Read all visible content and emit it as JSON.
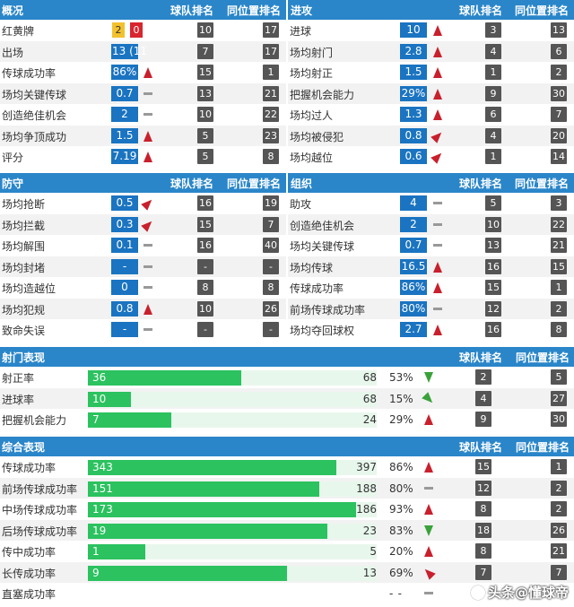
{
  "overview": {
    "title": "概况",
    "team_rank": "球队排名",
    "pos_rank": "同位置排名",
    "cards": {
      "label": "红黄牌",
      "yellow": "2",
      "red": "0",
      "team": "10",
      "pos": "17"
    },
    "rows": [
      {
        "label": "出场",
        "value": "13 (11",
        "trend": "",
        "team": "7",
        "pos": "17"
      },
      {
        "label": "传球成功率",
        "value": "86%",
        "trend": "up",
        "team": "15",
        "pos": "1"
      },
      {
        "label": "场均关键传球",
        "value": "0.7",
        "trend": "flat",
        "team": "13",
        "pos": "21"
      },
      {
        "label": "创造绝佳机会",
        "value": "2",
        "trend": "flat",
        "team": "10",
        "pos": "22"
      },
      {
        "label": "场均争顶成功",
        "value": "1.5",
        "trend": "up",
        "team": "5",
        "pos": "23"
      },
      {
        "label": "评分",
        "value": "7.19",
        "trend": "up",
        "team": "5",
        "pos": "8"
      }
    ]
  },
  "attack": {
    "title": "进攻",
    "team_rank": "球队排名",
    "pos_rank": "同位置排名",
    "rows": [
      {
        "label": "进球",
        "value": "10",
        "trend": "up",
        "team": "3",
        "pos": "13"
      },
      {
        "label": "场均射门",
        "value": "2.8",
        "trend": "up",
        "team": "4",
        "pos": "6"
      },
      {
        "label": "场均射正",
        "value": "1.5",
        "trend": "up",
        "team": "1",
        "pos": "2"
      },
      {
        "label": "把握机会能力",
        "value": "29%",
        "trend": "up",
        "team": "9",
        "pos": "30"
      },
      {
        "label": "场均过人",
        "value": "1.3",
        "trend": "up",
        "team": "6",
        "pos": "7"
      },
      {
        "label": "场均被侵犯",
        "value": "0.8",
        "trend": "up-right",
        "team": "4",
        "pos": "20"
      },
      {
        "label": "场均越位",
        "value": "0.6",
        "trend": "up-right",
        "team": "1",
        "pos": "14"
      }
    ]
  },
  "defense": {
    "title": "防守",
    "team_rank": "球队排名",
    "pos_rank": "同位置排名",
    "rows": [
      {
        "label": "场均抢断",
        "value": "0.5",
        "trend": "up-right",
        "team": "16",
        "pos": "19"
      },
      {
        "label": "场均拦截",
        "value": "0.3",
        "trend": "up-right",
        "team": "15",
        "pos": "7"
      },
      {
        "label": "场均解围",
        "value": "0.1",
        "trend": "flat",
        "team": "16",
        "pos": "40"
      },
      {
        "label": "场均封堵",
        "value": "-",
        "trend": "flat",
        "team": "-",
        "pos": "-"
      },
      {
        "label": "场均造越位",
        "value": "0",
        "trend": "flat",
        "team": "8",
        "pos": "8"
      },
      {
        "label": "场均犯规",
        "value": "0.8",
        "trend": "up",
        "team": "10",
        "pos": "26"
      },
      {
        "label": "致命失误",
        "value": "-",
        "trend": "flat",
        "team": "-",
        "pos": "-"
      }
    ]
  },
  "organize": {
    "title": "组织",
    "team_rank": "球队排名",
    "pos_rank": "同位置排名",
    "rows": [
      {
        "label": "助攻",
        "value": "4",
        "trend": "flat",
        "team": "5",
        "pos": "3"
      },
      {
        "label": "创造绝佳机会",
        "value": "2",
        "trend": "flat",
        "team": "10",
        "pos": "22"
      },
      {
        "label": "场均关键传球",
        "value": "0.7",
        "trend": "flat",
        "team": "13",
        "pos": "21"
      },
      {
        "label": "场均传球",
        "value": "16.5",
        "trend": "up",
        "team": "16",
        "pos": "15"
      },
      {
        "label": "传球成功率",
        "value": "86%",
        "trend": "up",
        "team": "15",
        "pos": "1"
      },
      {
        "label": "前场传球成功率",
        "value": "80%",
        "trend": "flat",
        "team": "12",
        "pos": "2"
      },
      {
        "label": "场均夺回球权",
        "value": "2.7",
        "trend": "up",
        "team": "16",
        "pos": "8"
      }
    ]
  },
  "shooting": {
    "title": "射门表现",
    "team_rank": "球队排名",
    "pos_rank": "同位置排名",
    "rows": [
      {
        "label": "射正率",
        "made": "36",
        "total": "68",
        "pct": "53%",
        "fill": 0.53,
        "trend": "down",
        "team": "2",
        "pos": "5"
      },
      {
        "label": "进球率",
        "made": "10",
        "total": "68",
        "pct": "15%",
        "fill": 0.15,
        "trend": "down-left",
        "team": "4",
        "pos": "27"
      },
      {
        "label": "把握机会能力",
        "made": "7",
        "total": "24",
        "pct": "29%",
        "fill": 0.29,
        "trend": "up",
        "team": "9",
        "pos": "30"
      }
    ]
  },
  "overall": {
    "title": "综合表现",
    "team_rank": "球队排名",
    "pos_rank": "同位置排名",
    "rows": [
      {
        "label": "传球成功率",
        "made": "343",
        "total": "397",
        "pct": "86%",
        "fill": 0.86,
        "trend": "up",
        "team": "15",
        "pos": "1"
      },
      {
        "label": "前场传球成功率",
        "made": "151",
        "total": "188",
        "pct": "80%",
        "fill": 0.8,
        "trend": "flat",
        "team": "12",
        "pos": "2"
      },
      {
        "label": "中场传球成功率",
        "made": "173",
        "total": "186",
        "pct": "93%",
        "fill": 0.93,
        "trend": "up",
        "team": "8",
        "pos": "2"
      },
      {
        "label": "后场传球成功率",
        "made": "19",
        "total": "23",
        "pct": "83%",
        "fill": 0.83,
        "trend": "down",
        "team": "18",
        "pos": "26"
      },
      {
        "label": "传中成功率",
        "made": "1",
        "total": "5",
        "pct": "20%",
        "fill": 0.2,
        "trend": "up",
        "team": "8",
        "pos": "21"
      },
      {
        "label": "长传成功率",
        "made": "9",
        "total": "13",
        "pct": "69%",
        "fill": 0.69,
        "trend": "up-left",
        "team": "7",
        "pos": "7"
      },
      {
        "label": "直塞成功率",
        "made": "",
        "total": "-",
        "pct": "-",
        "fill": 0,
        "trend": "flat",
        "team": "",
        "pos": ""
      }
    ]
  },
  "watermark": "头条@懂球帝"
}
